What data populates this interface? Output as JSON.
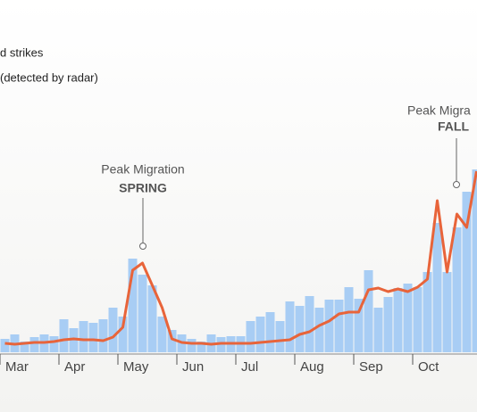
{
  "chart_data": {
    "type": "bar_line",
    "categories": [
      "Mar",
      null,
      null,
      null,
      null,
      null,
      "Apr",
      null,
      null,
      null,
      null,
      null,
      "May",
      null,
      null,
      null,
      null,
      null,
      "Jun",
      null,
      null,
      null,
      null,
      null,
      "Jul",
      null,
      null,
      null,
      null,
      null,
      "Aug",
      null,
      null,
      null,
      null,
      null,
      "Sep",
      null,
      null,
      null,
      null,
      null,
      "Oct",
      null,
      null,
      null,
      null,
      null,
      null
    ],
    "series": [
      {
        "name": "d strikes",
        "color": "#a8cdf4",
        "values": [
          15,
          20,
          12,
          17,
          20,
          18,
          37,
          27,
          35,
          33,
          37,
          50,
          40,
          105,
          87,
          75,
          40,
          25,
          20,
          15,
          12,
          20,
          17,
          18,
          18,
          35,
          40,
          45,
          35,
          57,
          52,
          63,
          50,
          59,
          59,
          73,
          60,
          92,
          50,
          62,
          72,
          77,
          73,
          90,
          145,
          90,
          140,
          180,
          205
        ]
      },
      {
        "name": "(detected by radar)",
        "color": "#e8643a",
        "values": [
          10,
          9,
          10,
          11,
          11,
          12,
          14,
          15,
          14,
          14,
          13,
          17,
          28,
          92,
          100,
          75,
          50,
          15,
          11,
          10,
          10,
          9,
          10,
          10,
          10,
          10,
          11,
          12,
          13,
          14,
          20,
          23,
          30,
          35,
          43,
          45,
          45,
          70,
          72,
          68,
          71,
          68,
          73,
          82,
          170,
          90,
          155,
          140,
          203
        ]
      }
    ],
    "ylim": [
      0,
      220
    ],
    "annotations": [
      {
        "text": "Peak Migration",
        "emphasis": "SPRING"
      },
      {
        "text": "Peak Migra",
        "emphasis": "FALL"
      }
    ]
  }
}
